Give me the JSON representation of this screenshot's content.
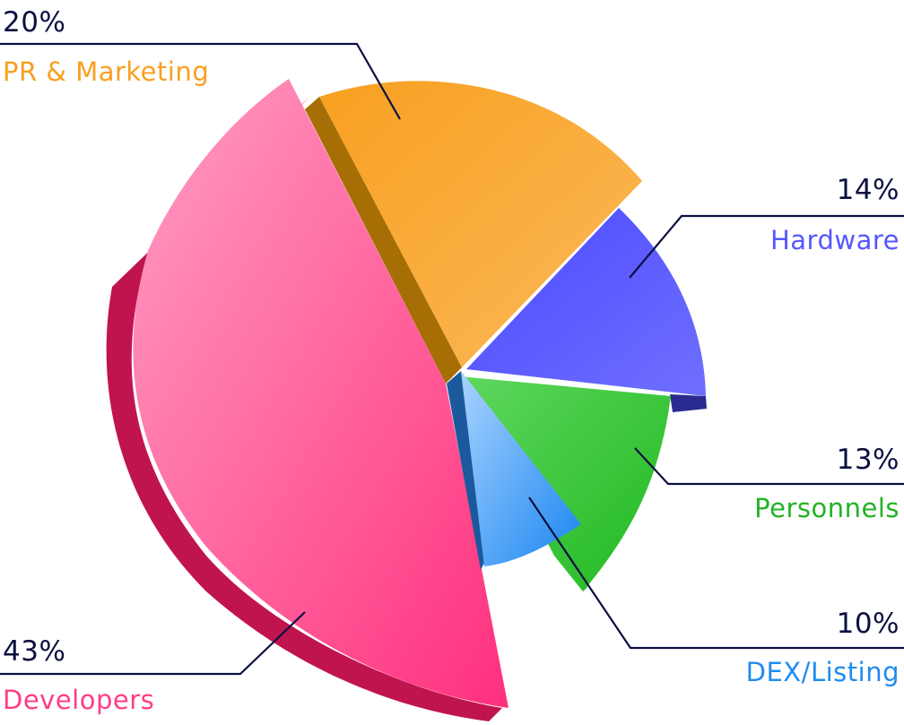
{
  "chart_data": {
    "type": "pie",
    "slices": [
      {
        "label": "PR & Marketing",
        "value": 20,
        "value_label": "20%",
        "color": "#f8a020",
        "color_light": "#fbb95a",
        "color_dark": "#a86e06"
      },
      {
        "label": "Hardware",
        "value": 14,
        "value_label": "14%",
        "color": "#5656ff",
        "color_light": "#6f6fff",
        "color_dark": "#2a2a90"
      },
      {
        "label": "Personnels",
        "value": 13,
        "value_label": "13%",
        "color": "#33c633",
        "color_light": "#5fd75f",
        "color_dark": "#1a7a1a"
      },
      {
        "label": "DEX/Listing",
        "value": 10,
        "value_label": "10%",
        "color": "#2b94f3",
        "color_light": "#9ccbff",
        "color_dark": "#1a5a9c"
      },
      {
        "label": "Developers",
        "value": 43,
        "value_label": "43%",
        "color": "#ff4d91",
        "color_light": "#ff9ec3",
        "color_dark": "#c0144f"
      }
    ],
    "legend": "none"
  },
  "colors": {
    "leader_line": "#0b1040",
    "percent_text": "#0b1040"
  }
}
